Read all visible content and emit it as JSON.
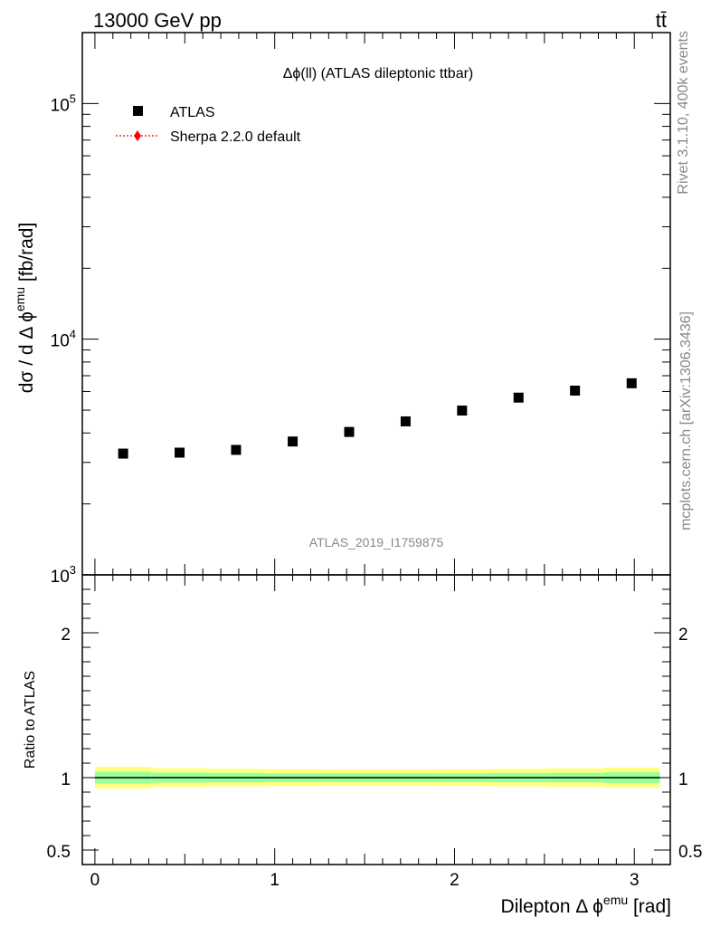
{
  "header": {
    "left": "13000 GeV pp",
    "right": "tt̄"
  },
  "side_text": {
    "rivet": "Rivet 3.1.10,  400k events",
    "mcplots": "mcplots.cern.ch [arXiv:1306.3436]"
  },
  "colors": {
    "data": "#000000",
    "mc": "#ff0000",
    "band_inner": "#99ff99",
    "band_outer": "#ffff80"
  },
  "chart_data": [
    {
      "type": "scatter",
      "panel": "main",
      "title": "Δϕ(ll) (ATLAS dileptonic ttbar)",
      "ylabel_parts": {
        "pre": "dσ / d Δ ϕ",
        "sup": "emu",
        "post": " [fb/rad]"
      },
      "yscale": "log",
      "ylim": [
        1000,
        200000
      ],
      "xlim": [
        -0.07,
        3.2
      ],
      "y_ticks": [
        {
          "value": 1000,
          "base": "10",
          "exp": "3"
        },
        {
          "value": 10000,
          "base": "10",
          "exp": "4"
        },
        {
          "value": 100000,
          "base": "10",
          "exp": "5"
        }
      ],
      "watermark": "ATLAS_2019_I1759875",
      "legend": {
        "position": "top-left",
        "entries": [
          {
            "label": "ATLAS",
            "marker": "square",
            "color": "#000000"
          },
          {
            "label": "Sherpa 2.2.0 default",
            "marker": "diamond-dotted",
            "color": "#ff0000"
          }
        ]
      },
      "series": [
        {
          "name": "ATLAS",
          "x": [
            0.157,
            0.471,
            0.785,
            1.1,
            1.414,
            1.728,
            2.042,
            2.356,
            2.67,
            2.985
          ],
          "y": [
            3270,
            3300,
            3390,
            3680,
            4040,
            4480,
            4980,
            5650,
            6050,
            6500
          ]
        }
      ]
    },
    {
      "type": "line",
      "panel": "ratio",
      "ylabel": "Ratio to ATLAS",
      "ylim": [
        0.4,
        2.4
      ],
      "xlim": [
        -0.07,
        3.2
      ],
      "y_ticks": [
        {
          "value": 0.5,
          "label": "0.5"
        },
        {
          "value": 1,
          "label": "1"
        },
        {
          "value": 2,
          "label": "2"
        }
      ],
      "x_ticks": [
        {
          "value": 0,
          "label": "0"
        },
        {
          "value": 1,
          "label": "1"
        },
        {
          "value": 2,
          "label": "2"
        },
        {
          "value": 3,
          "label": "3"
        }
      ],
      "xlabel_parts": {
        "pre": "Dilepton Δ ϕ",
        "sup": "emu",
        "post": " [rad]"
      },
      "reference": 1,
      "bins": [
        {
          "lo": 0,
          "hi": 0.314,
          "inner": 0.04,
          "outer": 0.075
        },
        {
          "lo": 0.314,
          "hi": 0.628,
          "inner": 0.035,
          "outer": 0.065
        },
        {
          "lo": 0.628,
          "hi": 0.942,
          "inner": 0.033,
          "outer": 0.06
        },
        {
          "lo": 0.942,
          "hi": 1.257,
          "inner": 0.03,
          "outer": 0.058
        },
        {
          "lo": 1.257,
          "hi": 1.571,
          "inner": 0.03,
          "outer": 0.056
        },
        {
          "lo": 1.571,
          "hi": 1.885,
          "inner": 0.03,
          "outer": 0.056
        },
        {
          "lo": 1.885,
          "hi": 2.199,
          "inner": 0.03,
          "outer": 0.057
        },
        {
          "lo": 2.199,
          "hi": 2.513,
          "inner": 0.032,
          "outer": 0.06
        },
        {
          "lo": 2.513,
          "hi": 2.827,
          "inner": 0.033,
          "outer": 0.063
        },
        {
          "lo": 2.827,
          "hi": 3.1416,
          "inner": 0.037,
          "outer": 0.07
        }
      ]
    }
  ]
}
